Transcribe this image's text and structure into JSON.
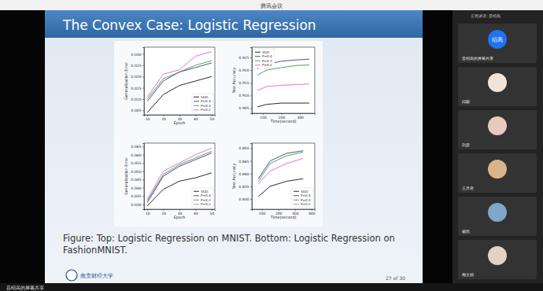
{
  "window": {
    "title": "腾讯会议",
    "speaking": "正在讲话: 吕绍高",
    "share_label": "吕绍高的屏幕共享",
    "participants": [
      {
        "name": "吕绍高的屏幕共享",
        "avatar": "绍高"
      },
      {
        "name": "闫勤"
      },
      {
        "name": "刘彦"
      },
      {
        "name": "王月君"
      },
      {
        "name": "杨凯"
      },
      {
        "name": "梅文娟"
      }
    ]
  },
  "slide": {
    "title": "The Convex Case: Logistic Regression",
    "caption": "Figure: Top: Logistic Regression on MNIST. Bottom: Logistic Regression on FashionMNIST.",
    "footer_logo": "南京财经大学",
    "page": "27 of 30"
  },
  "chart_data": [
    {
      "type": "line",
      "x_label": "Epoch",
      "y_label": "Generalization Error",
      "legend": "lower right",
      "x": [
        10,
        20,
        30,
        40,
        50
      ],
      "xlim": [
        8,
        52
      ],
      "xticks": [
        10,
        20,
        30,
        40,
        50
      ],
      "ylim": [
        0.003,
        0.033
      ],
      "yticks": [
        0.005,
        {
          "value": 0.01,
          "label": "0.010"
        },
        0.015,
        {
          "value": 0.02,
          "label": "0.020"
        },
        0.025,
        {
          "value": 0.03,
          "label": "0.030"
        }
      ],
      "series": [
        {
          "name": "SGD",
          "color": "#111111",
          "values": [
            0.004,
            0.012,
            0.016,
            0.018,
            0.02
          ]
        },
        {
          "name": "P=0.4",
          "color": "#3b3b8f",
          "values": [
            0.009,
            0.018,
            0.022,
            0.024,
            0.026
          ]
        },
        {
          "name": "P=0.3",
          "color": "#3a9a3a",
          "values": [
            0.01,
            0.019,
            0.022,
            0.025,
            0.027
          ]
        },
        {
          "name": "P=0.2",
          "color": "#e060e0",
          "values": [
            0.011,
            0.021,
            0.023,
            0.029,
            0.031
          ]
        }
      ]
    },
    {
      "type": "line",
      "x_label": "Time(second)",
      "y_label": "Test Accuracy",
      "legend": "upper left",
      "x": [
        70,
        120,
        200,
        280,
        350
      ],
      "xlim": [
        40,
        380
      ],
      "xticks": [
        100,
        200,
        300
      ],
      "ylim": [
        0.903,
        0.929
      ],
      "yticks": [
        0.905,
        {
          "value": 0.91,
          "label": "0.910"
        },
        0.915,
        {
          "value": 0.92,
          "label": "0.920"
        },
        0.925
      ],
      "series": [
        {
          "name": "SGD",
          "color": "#111111",
          "values": [
            0.9055,
            0.9065,
            0.907,
            0.907,
            0.907
          ]
        },
        {
          "name": "P=0.4",
          "color": "#3b3b8f",
          "values": [
            0.9205,
            0.9222,
            0.9235,
            0.924,
            0.9243
          ]
        },
        {
          "name": "P=0.3",
          "color": "#3a9a3a",
          "values": [
            0.918,
            0.92,
            0.921,
            0.9218,
            0.922
          ]
        },
        {
          "name": "P=0.2",
          "color": "#e060e0",
          "values": [
            0.912,
            0.9135,
            0.914,
            0.9143,
            0.9145
          ]
        }
      ]
    },
    {
      "type": "line",
      "x_label": "Epoch",
      "y_label": "Generalization Error",
      "legend": "lower right",
      "x": [
        10,
        20,
        30,
        40,
        50
      ],
      "xlim": [
        8,
        52
      ],
      "xticks": [
        10,
        20,
        30,
        40,
        50
      ],
      "ylim": [
        0.027,
        0.067
      ],
      "yticks": [
        {
          "value": 0.03,
          "label": "0.030"
        },
        0.035,
        {
          "value": 0.04,
          "label": "0.040"
        },
        0.045,
        {
          "value": 0.05,
          "label": "0.050"
        },
        0.055,
        {
          "value": 0.06,
          "label": "0.060"
        },
        0.065
      ],
      "series": [
        {
          "name": "SGD",
          "color": "#111111",
          "values": [
            0.029,
            0.039,
            0.044,
            0.046,
            0.049
          ]
        },
        {
          "name": "P=0.4",
          "color": "#3b3b8f",
          "values": [
            0.031,
            0.047,
            0.053,
            0.057,
            0.061
          ]
        },
        {
          "name": "P=0.3",
          "color": "#3a9a3a",
          "values": [
            0.032,
            0.048,
            0.054,
            0.058,
            0.062
          ]
        },
        {
          "name": "P=0.2",
          "color": "#e060e0",
          "values": [
            0.033,
            0.05,
            0.055,
            0.06,
            0.064
          ]
        }
      ]
    },
    {
      "type": "line",
      "x_label": "Time(second)",
      "y_label": "Test Accuracy",
      "legend": "lower right",
      "x": [
        80,
        150,
        250,
        350
      ],
      "xlim": [
        40,
        420
      ],
      "xticks": [
        100,
        200,
        300,
        400
      ],
      "ylim": [
        0.826,
        0.852
      ],
      "yticks": [
        {
          "value": 0.83,
          "label": "0.830"
        },
        0.835,
        {
          "value": 0.84,
          "label": "0.840"
        },
        0.845,
        {
          "value": 0.85,
          "label": "0.850"
        }
      ],
      "series": [
        {
          "name": "SGD",
          "color": "#111111",
          "values": [
            0.831,
            0.835,
            0.837,
            0.838
          ]
        },
        {
          "name": "P=0.4",
          "color": "#3b3b8f",
          "values": [
            0.838,
            0.845,
            0.848,
            0.849
          ]
        },
        {
          "name": "P=0.3",
          "color": "#3a9a3a",
          "values": [
            0.837,
            0.844,
            0.847,
            0.8485
          ]
        },
        {
          "name": "P=0.2",
          "color": "#e060e0",
          "values": [
            0.836,
            0.841,
            0.844,
            0.846
          ]
        }
      ]
    }
  ]
}
